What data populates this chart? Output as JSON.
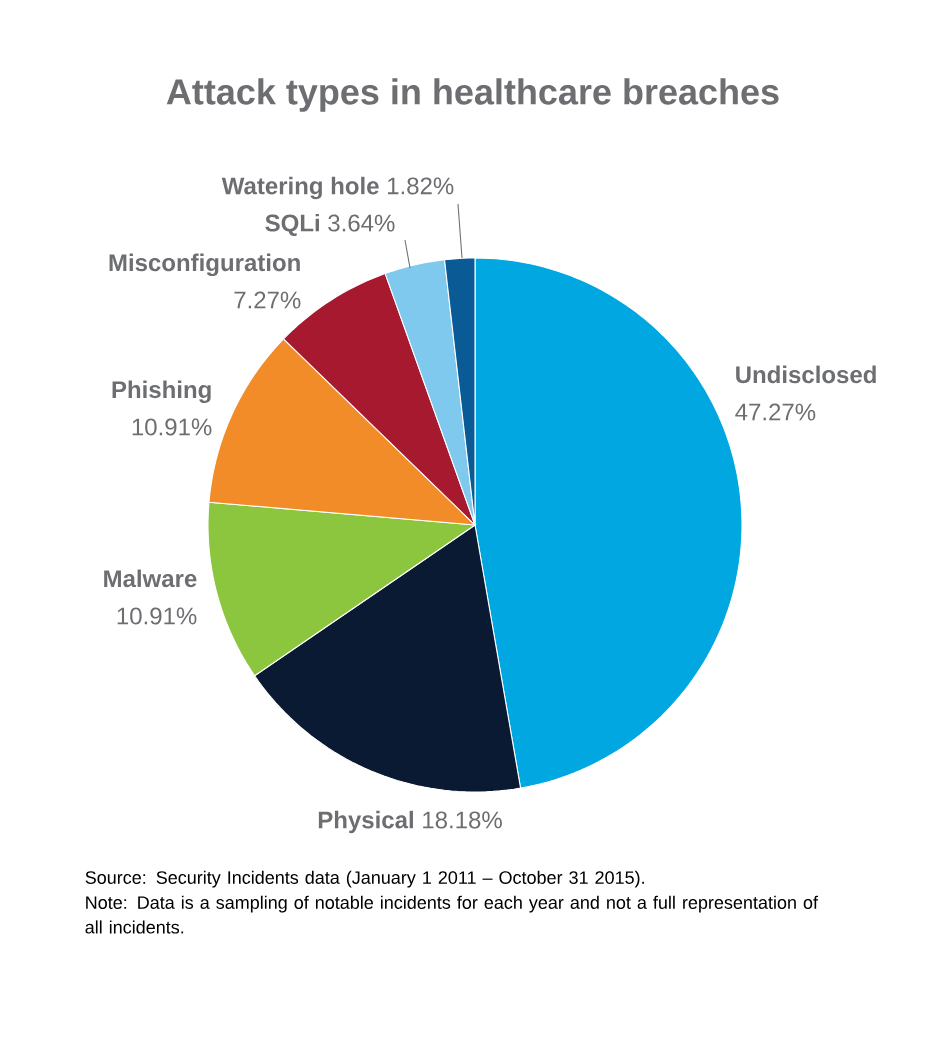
{
  "chart_data": {
    "type": "pie",
    "title": "Attack types in healthcare breaches",
    "categories": [
      "Undisclosed",
      "Physical",
      "Malware",
      "Phishing",
      "Misconfiguration",
      "SQLi",
      "Watering hole"
    ],
    "values": [
      47.27,
      18.18,
      10.91,
      10.91,
      7.27,
      3.64,
      1.82
    ],
    "colors": [
      "#00a7e1",
      "#0b1a33",
      "#8cc63f",
      "#f28c28",
      "#a6192e",
      "#7fc8ee",
      "#0a5a96"
    ],
    "value_labels": [
      "47.27%",
      "18.18%",
      "10.91%",
      "10.91%",
      "7.27%",
      "3.64%",
      "1.82%"
    ],
    "annotations": [
      "Source: Security Incidents data (January 1 2011 – October 31 2015).",
      "Note: Data is a sampling of notable incidents for each year and not a full representation of all incidents."
    ]
  }
}
